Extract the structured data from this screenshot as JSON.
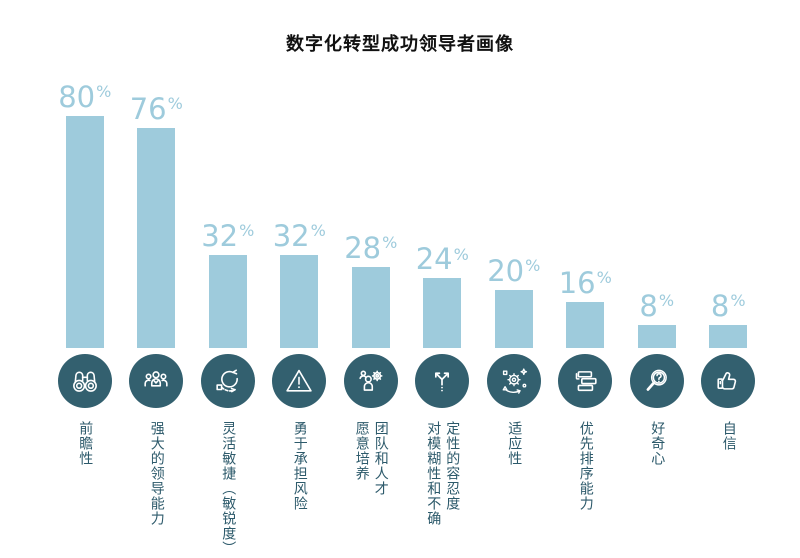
{
  "title": "数字化转型成功领导者画像",
  "colors": {
    "accent": "#9ecbdc",
    "circle": "#33606f",
    "label_text": "#2d5a6b",
    "title_text": "#111111",
    "background": "#ffffff"
  },
  "chart_data": {
    "type": "bar",
    "title": "数字化转型成功领导者画像",
    "unit": "%",
    "ylim": [
      0,
      100
    ],
    "grid": false,
    "legend": false,
    "value_labels": "above bars",
    "category_labels": "vertical text below icons",
    "categories": [
      "前瞻性",
      "强大的领导能力",
      "灵活敏捷（敏锐度）",
      "勇于承担风险",
      "团队和人才愿意培养",
      "定性的容忍度对模糊性和不确",
      "适应性",
      "优先排序能力",
      "好奇心",
      "自信"
    ],
    "values": [
      80,
      76,
      32,
      32,
      28,
      24,
      20,
      16,
      8,
      8
    ],
    "bars": [
      {
        "value": 80,
        "label": "前瞻性",
        "icon": "binoculars-icon"
      },
      {
        "value": 76,
        "label": "强大的领导能力",
        "icon": "team-icon"
      },
      {
        "value": 32,
        "label": "灵活敏捷（敏锐度）",
        "icon": "agile-cycle-icon"
      },
      {
        "value": 32,
        "label": "勇于承担风险",
        "icon": "warning-triangle-icon"
      },
      {
        "value": 28,
        "label": "团队和人才\n愿意培养",
        "icon": "talent-development-icon"
      },
      {
        "value": 24,
        "label": "定性的容忍度\n对模糊性和不确",
        "icon": "branching-arrows-icon"
      },
      {
        "value": 20,
        "label": "适应性",
        "icon": "adaptive-gear-icon"
      },
      {
        "value": 16,
        "label": "优先排序能力",
        "icon": "priority-list-icon"
      },
      {
        "value": 8,
        "label": "好奇心",
        "icon": "magnifier-question-icon"
      },
      {
        "value": 8,
        "label": "自信",
        "icon": "thumbs-up-icon"
      }
    ]
  }
}
